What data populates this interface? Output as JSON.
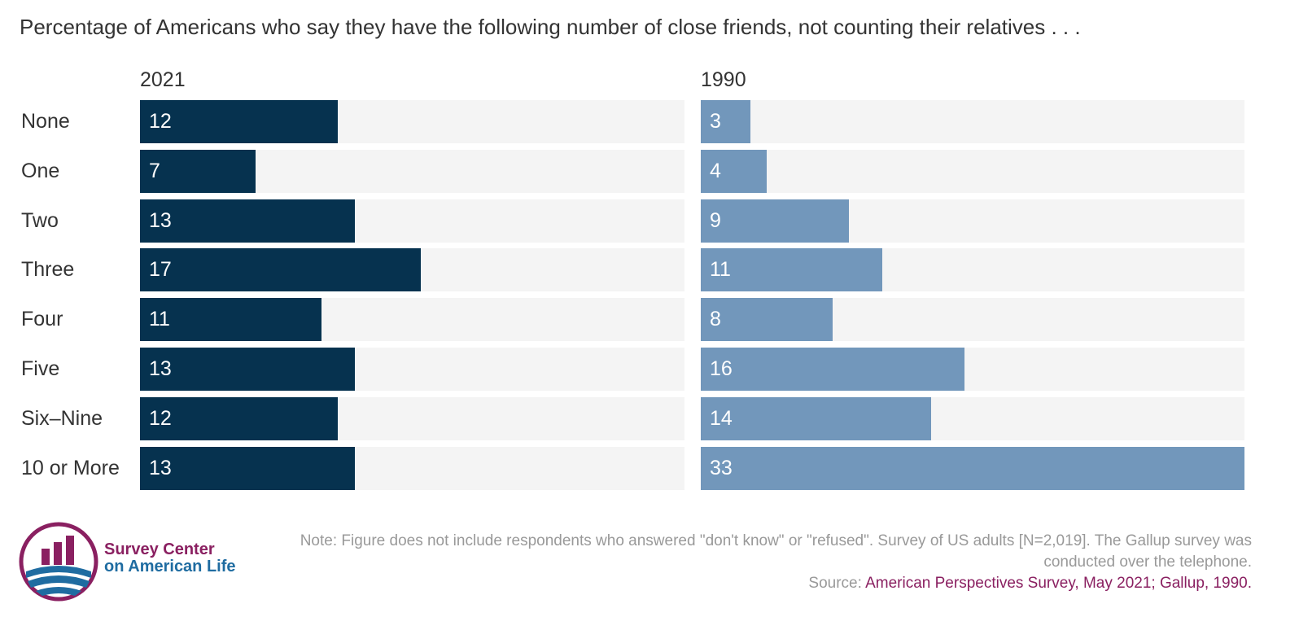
{
  "chart_data": {
    "type": "bar",
    "orientation": "horizontal",
    "title": "Percentage of Americans who say they have the following number of close friends, not counting their relatives . . .",
    "categories": [
      "None",
      "One",
      "Two",
      "Three",
      "Four",
      "Five",
      "Six–Nine",
      "10 or More"
    ],
    "xlim": [
      0,
      33
    ],
    "series": [
      {
        "name": "2021",
        "color": "#06324f",
        "values": [
          12,
          7,
          13,
          17,
          11,
          13,
          12,
          13
        ]
      },
      {
        "name": "1990",
        "color": "#7297bb",
        "values": [
          3,
          4,
          9,
          11,
          8,
          16,
          14,
          33
        ]
      }
    ]
  },
  "note": "Note: Figure does not include respondents who answered \"don't know\" or \"refused\". Survey of US adults [N=2,019]. The Gallup survey was conducted over the telephone.",
  "source_label": "Source: ",
  "source_text": "American Perspectives Survey, May 2021; Gallup, 1990.",
  "logo": {
    "line1": "Survey Center",
    "line2": "on American Life"
  }
}
